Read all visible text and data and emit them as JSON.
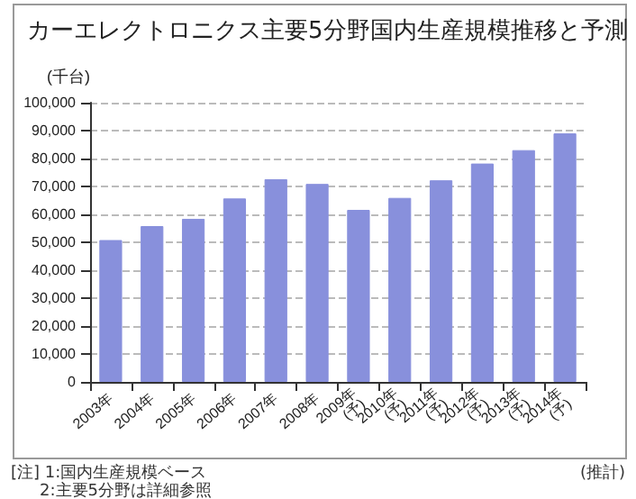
{
  "chart_data": {
    "type": "bar",
    "title": "カーエレクトロニクス主要5分野国内生産規模推移と予測",
    "ylabel": "(千台)",
    "categories": [
      "2003年",
      "2004年",
      "2005年",
      "2006年",
      "2007年",
      "2008年",
      "2009年\n(予)",
      "2010年\n(予)",
      "2011年\n(予)",
      "2012年\n(予)",
      "2013年\n(予)",
      "2014年\n(予)"
    ],
    "values": [
      50800,
      55800,
      58400,
      65700,
      72600,
      70900,
      61600,
      65900,
      72200,
      78200,
      83000,
      89000
    ],
    "color": "#8890dc",
    "ylim": [
      0,
      100000
    ],
    "yticks": [
      {
        "value": 0,
        "label": "0"
      },
      {
        "value": 10000,
        "label": "10,000"
      },
      {
        "value": 20000,
        "label": "20,000"
      },
      {
        "value": 30000,
        "label": "30,000"
      },
      {
        "value": 40000,
        "label": "40,000"
      },
      {
        "value": 50000,
        "label": "50,000"
      },
      {
        "value": 60000,
        "label": "60,000"
      },
      {
        "value": 70000,
        "label": "70,000"
      },
      {
        "value": 80000,
        "label": "80,000"
      },
      {
        "value": 90000,
        "label": "90,000"
      },
      {
        "value": 100000,
        "label": "100,000"
      }
    ],
    "grid": "y",
    "annotations": [
      "[注] 1:国内生産規模ベース",
      "2:主要5分野は詳細参照",
      "(推計)"
    ]
  }
}
